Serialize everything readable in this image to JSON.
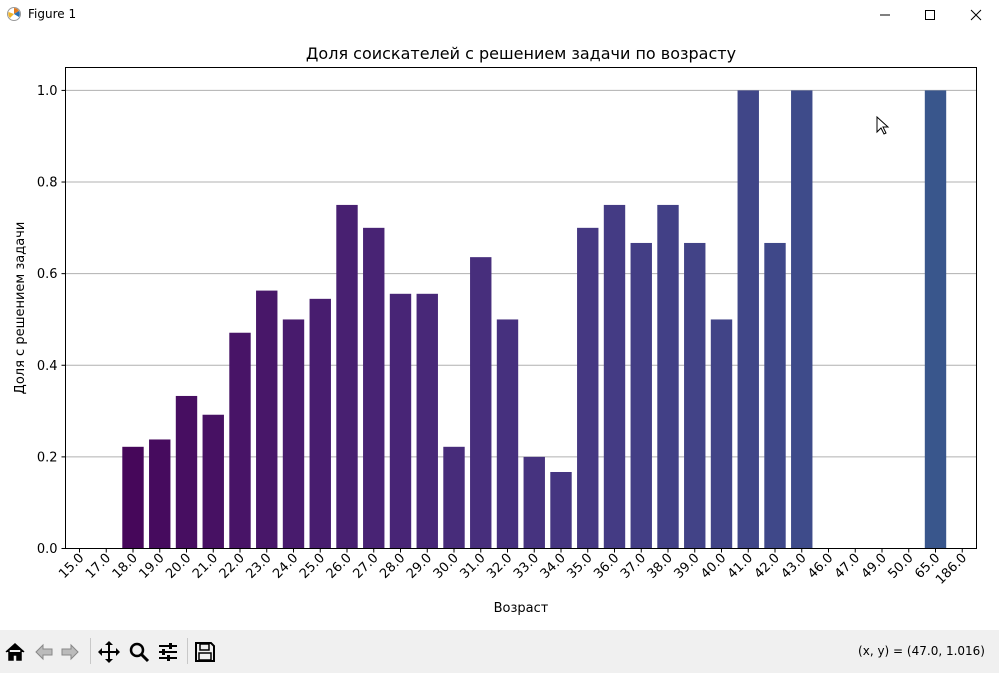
{
  "window": {
    "title": "Figure 1",
    "minimize_icon": "minimize-icon",
    "maximize_icon": "maximize-icon",
    "close_icon": "close-icon"
  },
  "toolbar": {
    "buttons": [
      "home-icon",
      "back-arrow-icon",
      "forward-arrow-icon",
      "pan-icon",
      "zoom-icon",
      "configure-subplots-icon",
      "save-icon"
    ],
    "coords": "(x, y) = (47.0, 1.016)"
  },
  "chart_data": {
    "type": "bar",
    "title": "Доля соискателей с решением задачи по возрасту",
    "xlabel": "Возраст",
    "ylabel": "Доля с решением задачи",
    "ylim": [
      0,
      1.05
    ],
    "yticks": [
      "0.0",
      "0.2",
      "0.4",
      "0.6",
      "0.8",
      "1.0"
    ],
    "grid": "horizontal",
    "categories": [
      "15.0",
      "17.0",
      "18.0",
      "19.0",
      "20.0",
      "21.0",
      "22.0",
      "23.0",
      "24.0",
      "25.0",
      "26.0",
      "27.0",
      "28.0",
      "29.0",
      "30.0",
      "31.0",
      "32.0",
      "33.0",
      "34.0",
      "35.0",
      "36.0",
      "37.0",
      "38.0",
      "39.0",
      "40.0",
      "41.0",
      "42.0",
      "43.0",
      "46.0",
      "47.0",
      "49.0",
      "50.0",
      "65.0",
      "186.0"
    ],
    "values": [
      0,
      0,
      0.222,
      0.238,
      0.333,
      0.292,
      0.471,
      0.563,
      0.5,
      0.545,
      0.75,
      0.7,
      0.556,
      0.556,
      0.222,
      0.636,
      0.5,
      0.2,
      0.167,
      0.7,
      0.75,
      0.667,
      0.75,
      0.667,
      0.5,
      1.0,
      0.667,
      1.0,
      0,
      0,
      0,
      0,
      1.0,
      0
    ],
    "colors": [
      "#440154",
      "#450457",
      "#46075a",
      "#460b5e",
      "#470e61",
      "#471163",
      "#481467",
      "#481769",
      "#481b6d",
      "#481d6f",
      "#482071",
      "#482374",
      "#482576",
      "#482878",
      "#472c7a",
      "#472e7c",
      "#46307e",
      "#46337f",
      "#453581",
      "#453882",
      "#443b84",
      "#433e85",
      "#424086",
      "#424387",
      "#414487",
      "#404688",
      "#3f4889",
      "#3e4b8a",
      "#3d4e8a",
      "#3c508b",
      "#3b528b",
      "#3a548c",
      "#39568c",
      "#38598c"
    ]
  }
}
